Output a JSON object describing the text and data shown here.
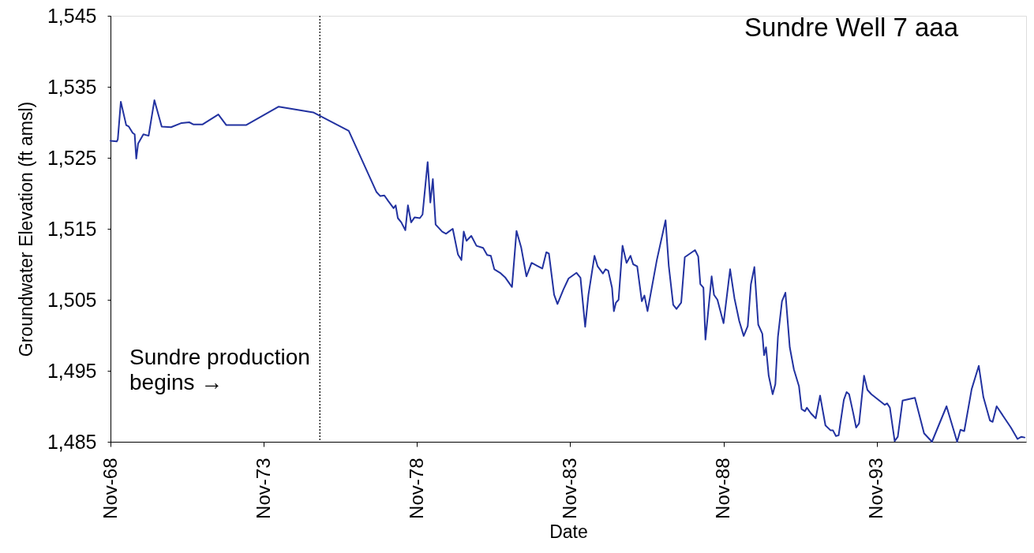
{
  "chart_data": {
    "type": "line",
    "title": "Sundre Well 7 aaa",
    "xlabel": "Date",
    "ylabel": "Groundwater Elevation (ft amsl)",
    "xlim": [
      "1968-11-01",
      "1998-09-15"
    ],
    "ylim": [
      1485,
      1545
    ],
    "xticks": [
      {
        "value": "1968-11-01",
        "label": "Nov-68"
      },
      {
        "value": "1973-11-01",
        "label": "Nov-73"
      },
      {
        "value": "1978-11-01",
        "label": "Nov-78"
      },
      {
        "value": "1983-11-01",
        "label": "Nov-83"
      },
      {
        "value": "1988-11-01",
        "label": "Nov-88"
      },
      {
        "value": "1993-11-01",
        "label": "Nov-93"
      }
    ],
    "yticks": [
      {
        "value": 1485,
        "label": "1,485"
      },
      {
        "value": 1495,
        "label": "1,495"
      },
      {
        "value": 1505,
        "label": "1,505"
      },
      {
        "value": 1515,
        "label": "1,515"
      },
      {
        "value": 1525,
        "label": "1,525"
      },
      {
        "value": 1535,
        "label": "1,535"
      },
      {
        "value": 1545,
        "label": "1,545"
      }
    ],
    "grid": false,
    "ref_lines": [
      {
        "axis": "x",
        "value": "1975-09-01",
        "label": "Sundre production\nbegins →",
        "line_style": "dotted",
        "color": "#000000"
      }
    ],
    "x": [
      "1968-11-01",
      "1969-01-15",
      "1969-01-27",
      "1969-03-04",
      "1969-05-07",
      "1969-06-07",
      "1969-07-23",
      "1969-08-16",
      "1969-09-04",
      "1969-09-26",
      "1969-11-28",
      "1970-01-29",
      "1970-04-08",
      "1970-07-04",
      "1970-10-23",
      "1971-02-26",
      "1971-05-28",
      "1971-07-15",
      "1971-11-04",
      "1972-05-09",
      "1972-08-12",
      "1973-04-04",
      "1974-04-28",
      "1975-06-13",
      "1976-08-10",
      "1977-07-05",
      "1977-08-21",
      "1977-10-08",
      "1977-11-24",
      "1978-01-26",
      "1978-02-20",
      "1978-03-18",
      "1978-04-28",
      "1978-06-15",
      "1978-07-16",
      "1978-08-23",
      "1978-10-03",
      "1978-12-05",
      "1979-01-06",
      "1979-03-08",
      "1979-04-09",
      "1979-05-09",
      "1979-06-11",
      "1979-08-28",
      "1979-10-14",
      "1979-11-15",
      "1980-01-01",
      "1980-03-03",
      "1980-04-13",
      "1980-05-11",
      "1980-06-13",
      "1980-08-09",
      "1980-10-10",
      "1980-12-28",
      "1981-02-14",
      "1981-03-30",
      "1981-05-10",
      "1981-07-18",
      "1981-09-20",
      "1981-12-07",
      "1982-01-30",
      "1982-03-26",
      "1982-05-28",
      "1982-07-29",
      "1982-10-01",
      "1982-12-03",
      "1983-01-20",
      "1983-02-20",
      "1983-04-23",
      "1983-06-02",
      "1983-08-10",
      "1983-10-12",
      "1984-01-15",
      "1984-03-02",
      "1984-04-27",
      "1984-06-05",
      "1984-08-16",
      "1984-09-23",
      "1984-11-24",
      "1984-12-26",
      "1985-01-27",
      "1985-03-13",
      "1985-04-04",
      "1985-04-29",
      "1985-05-30",
      "1985-07-16",
      "1985-09-02",
      "1985-10-19",
      "1985-11-20",
      "1986-01-07",
      "1986-03-03",
      "1986-04-03",
      "1986-05-10",
      "1986-08-29",
      "1986-12-11",
      "1987-01-18",
      "1987-03-12",
      "1987-04-20",
      "1987-06-15",
      "1987-07-28",
      "1987-11-27",
      "1988-01-04",
      "1988-01-29",
      "1988-03-06",
      "1988-03-30",
      "1988-06-12",
      "1988-07-10",
      "1988-08-20",
      "1988-11-01",
      "1989-01-18",
      "1989-03-11",
      "1989-05-07",
      "1989-06-29",
      "1989-08-16",
      "1989-09-23",
      "1989-11-03",
      "1989-12-19",
      "1990-02-06",
      "1990-02-27",
      "1990-03-22",
      "1990-04-23",
      "1990-06-09",
      "1990-07-11",
      "1990-08-11",
      "1990-09-28",
      "1990-11-08",
      "1990-12-30",
      "1991-02-17",
      "1991-04-19",
      "1991-05-20",
      "1991-06-29",
      "1991-07-22",
      "1991-09-08",
      "1991-11-04",
      "1991-12-26",
      "1992-02-28",
      "1992-04-30",
      "1992-05-28",
      "1992-07-02",
      "1992-08-03",
      "1992-10-04",
      "1992-11-06",
      "1992-12-06",
      "1993-01-23",
      "1993-02-28",
      "1993-04-04",
      "1993-06-02",
      "1993-07-12",
      "1993-08-28",
      "1994-01-03",
      "1994-02-04",
      "1994-03-04",
      "1994-04-06",
      "1994-06-02",
      "1994-07-09",
      "1994-09-04",
      "1995-01-29",
      "1995-05-18",
      "1995-08-20",
      "1996-02-10",
      "1996-06-15",
      "1996-07-25",
      "1996-09-08",
      "1996-12-05",
      "1997-02-28",
      "1997-04-24",
      "1997-07-11",
      "1997-08-12",
      "1997-09-29",
      "1998-03-18",
      "1998-06-05",
      "1998-07-22",
      "1998-08-28"
    ],
    "series": [
      {
        "color": "#2232a0",
        "values": [
          1527.4,
          1527.3,
          1527.6,
          1532.9,
          1529.6,
          1529.4,
          1528.5,
          1528.3,
          1524.9,
          1527.0,
          1528.3,
          1528.1,
          1533.1,
          1529.4,
          1529.3,
          1529.9,
          1530.0,
          1529.7,
          1529.7,
          1531.1,
          1529.6,
          1529.6,
          1532.2,
          1531.4,
          1528.8,
          1520.2,
          1519.6,
          1519.7,
          1518.9,
          1517.9,
          1518.3,
          1516.5,
          1515.9,
          1514.8,
          1518.3,
          1515.9,
          1516.6,
          1516.5,
          1517.0,
          1524.4,
          1518.7,
          1522.0,
          1515.6,
          1514.6,
          1514.3,
          1514.6,
          1515.0,
          1511.4,
          1510.6,
          1514.6,
          1513.3,
          1514.0,
          1512.6,
          1512.3,
          1511.3,
          1511.2,
          1509.3,
          1508.8,
          1508.1,
          1506.8,
          1514.7,
          1512.4,
          1508.3,
          1510.2,
          1509.8,
          1509.4,
          1511.7,
          1511.5,
          1505.7,
          1504.4,
          1506.4,
          1508.0,
          1508.8,
          1508.1,
          1501.2,
          1505.7,
          1511.2,
          1509.7,
          1508.7,
          1509.3,
          1509.1,
          1506.7,
          1503.4,
          1504.6,
          1505.0,
          1512.6,
          1510.2,
          1511.2,
          1510.0,
          1509.7,
          1504.8,
          1505.6,
          1503.4,
          1510.6,
          1516.2,
          1509.8,
          1504.3,
          1503.7,
          1504.6,
          1511.0,
          1512.0,
          1511.1,
          1507.2,
          1506.7,
          1499.4,
          1508.3,
          1505.7,
          1505.0,
          1501.7,
          1509.3,
          1505.2,
          1502.0,
          1499.9,
          1501.3,
          1507.2,
          1509.6,
          1501.5,
          1500.2,
          1497.2,
          1498.3,
          1494.3,
          1491.7,
          1493.1,
          1499.8,
          1504.8,
          1506.0,
          1498.3,
          1495.2,
          1492.8,
          1489.6,
          1489.3,
          1489.8,
          1489.0,
          1488.3,
          1491.5,
          1487.3,
          1486.6,
          1486.6,
          1485.8,
          1485.9,
          1490.9,
          1492.0,
          1491.7,
          1489.1,
          1487.0,
          1487.6,
          1494.3,
          1492.3,
          1491.7,
          1490.5,
          1490.2,
          1490.4,
          1489.8,
          1485.1,
          1485.7,
          1490.8,
          1491.2,
          1486.2,
          1485.0,
          1490.0,
          1485.0,
          1486.7,
          1486.5,
          1492.4,
          1495.7,
          1491.3,
          1488.0,
          1487.8,
          1490.0,
          1487.0,
          1485.4,
          1485.7,
          1485.6
        ]
      }
    ]
  }
}
